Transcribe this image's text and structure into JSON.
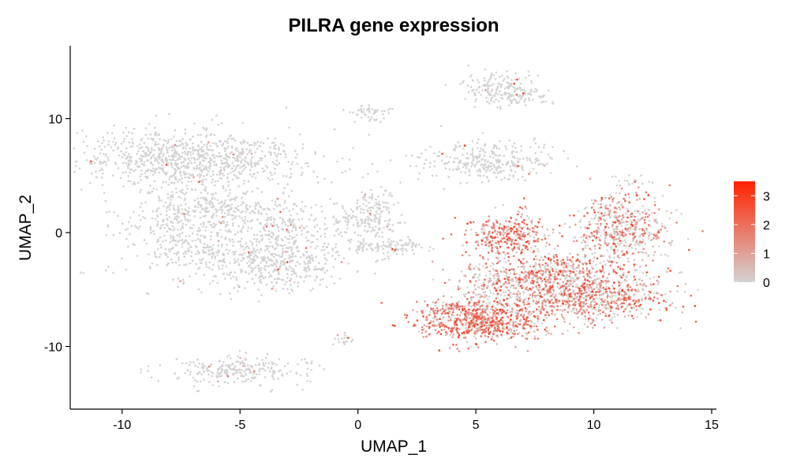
{
  "chart_data": {
    "type": "scatter",
    "title": "PILRA gene expression",
    "xlabel": "UMAP_1",
    "ylabel": "UMAP_2",
    "xlim": [
      -12.2,
      15.2
    ],
    "ylim": [
      -15.5,
      16.4
    ],
    "x_ticks": [
      -10,
      -5,
      0,
      5,
      10,
      15
    ],
    "y_ticks": [
      -10,
      0,
      10
    ],
    "x_tick_labels": [
      "-10",
      "-5",
      "0",
      "5",
      "10",
      "15"
    ],
    "y_tick_labels": [
      "-10",
      "0",
      "10"
    ],
    "grid": false,
    "legend_position": "right",
    "color_scale": {
      "low_color": "#d3d3d3",
      "high_color": "#ff2200",
      "min": 0,
      "max": 3.5,
      "ticks": [
        0,
        1,
        2,
        3
      ],
      "tick_labels": [
        "0",
        "1",
        "2",
        "3"
      ]
    },
    "clusters": [
      {
        "x": -7.0,
        "y": 6.5,
        "sx": 2.4,
        "sy": 1.3,
        "n": 900,
        "expr": 0.02
      },
      {
        "x": -7.2,
        "y": 0.5,
        "sx": 1.5,
        "sy": 2.2,
        "n": 500,
        "expr": 0.02
      },
      {
        "x": -3.6,
        "y": -2.7,
        "sx": 1.5,
        "sy": 1.2,
        "n": 450,
        "expr": 0.02
      },
      {
        "x": -5.2,
        "y": 2.2,
        "sx": 1.5,
        "sy": 0.6,
        "n": 150,
        "expr": 0.02
      },
      {
        "x": -3.2,
        "y": 0.2,
        "sx": 0.9,
        "sy": 0.8,
        "n": 120,
        "expr": 0.02
      },
      {
        "x": -5.0,
        "y": -12.1,
        "sx": 1.5,
        "sy": 0.6,
        "n": 250,
        "expr": 0.03
      },
      {
        "x": 0.6,
        "y": 1.2,
        "sx": 0.6,
        "sy": 1.4,
        "n": 200,
        "expr": 0.02
      },
      {
        "x": 1.5,
        "y": -1.2,
        "sx": 0.8,
        "sy": 0.3,
        "n": 90,
        "expr": 0.01
      },
      {
        "x": -0.7,
        "y": 1.0,
        "sx": 0.8,
        "sy": 0.4,
        "n": 40,
        "expr": 0.01
      },
      {
        "x": 5.5,
        "y": 6.3,
        "sx": 1.3,
        "sy": 0.9,
        "n": 300,
        "expr": 0.02
      },
      {
        "x": 5.9,
        "y": 12.9,
        "sx": 0.7,
        "sy": 0.7,
        "n": 140,
        "expr": 0.03
      },
      {
        "x": 6.8,
        "y": 12.0,
        "sx": 0.7,
        "sy": 0.4,
        "n": 80,
        "expr": 0.02
      },
      {
        "x": 0.5,
        "y": 10.5,
        "sx": 0.5,
        "sy": 0.4,
        "n": 50,
        "expr": 0.01
      },
      {
        "x": -0.6,
        "y": -9.3,
        "sx": 0.2,
        "sy": 0.3,
        "n": 20,
        "expr": 0.01
      },
      {
        "x": 6.4,
        "y": -0.3,
        "sx": 0.9,
        "sy": 1.0,
        "n": 350,
        "expr": 0.55
      },
      {
        "x": 5.2,
        "y": -7.9,
        "sx": 1.3,
        "sy": 0.8,
        "n": 650,
        "expr": 0.65
      },
      {
        "x": 9.6,
        "y": -5.5,
        "sx": 1.8,
        "sy": 1.1,
        "n": 900,
        "expr": 0.45
      },
      {
        "x": 11.2,
        "y": 0.5,
        "sx": 1.0,
        "sy": 1.6,
        "n": 500,
        "expr": 0.4
      },
      {
        "x": 8.5,
        "y": -3.2,
        "sx": 1.4,
        "sy": 0.7,
        "n": 250,
        "expr": 0.45
      },
      {
        "x": 6.5,
        "y": -4.0,
        "sx": 1.3,
        "sy": 0.6,
        "n": 160,
        "expr": 0.4
      },
      {
        "x": 3.9,
        "y": -6.5,
        "sx": 0.6,
        "sy": 0.3,
        "n": 70,
        "expr": 0.5
      },
      {
        "x": 5.3,
        "y": -5.4,
        "sx": 0.6,
        "sy": 0.7,
        "n": 70,
        "expr": 0.25
      },
      {
        "x": 11.5,
        "y": 4.4,
        "sx": 0.3,
        "sy": 0.2,
        "n": 15,
        "expr": 0.02
      }
    ]
  }
}
